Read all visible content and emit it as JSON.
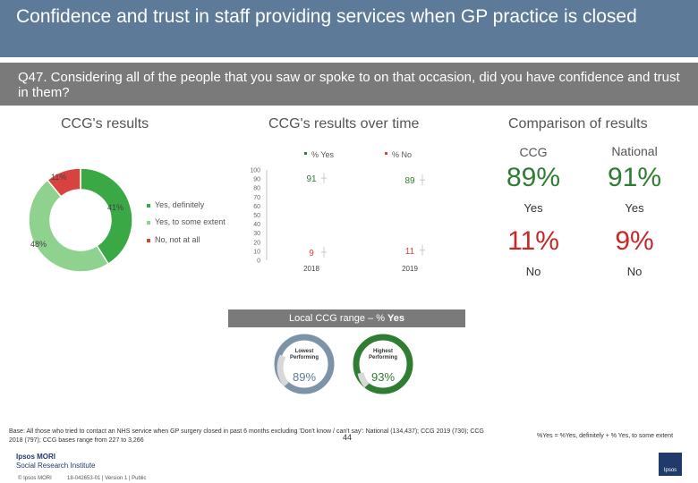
{
  "header": {
    "title": "Confidence and trust in staff providing services when GP practice is closed",
    "question": "Q47. Considering all of the people that you saw or spoke to on that occasion, did you have confidence and trust in them?"
  },
  "sections": {
    "ccg_results": "CCG's results",
    "over_time": "CCG's results over time",
    "comparison": "Comparison of results"
  },
  "donut": {
    "labels": [
      "41%",
      "48%",
      "11%"
    ],
    "legend": [
      "Yes, definitely",
      "Yes, to some extent",
      "No, not at all"
    ],
    "colors": [
      "#3aa845",
      "#8fd18f",
      "#d9433f"
    ]
  },
  "chart_data": {
    "type": "line",
    "categories": [
      "2018",
      "2019"
    ],
    "series": [
      {
        "name": "% Yes",
        "values": [
          91,
          89
        ],
        "color": "#2e7d32"
      },
      {
        "name": "% No",
        "values": [
          9,
          11
        ],
        "color": "#d9433f"
      }
    ],
    "yticks": [
      "0",
      "10",
      "20",
      "30",
      "40",
      "50",
      "60",
      "70",
      "80",
      "90",
      "100"
    ],
    "ylim": [
      0,
      100
    ],
    "legend": [
      "% Yes",
      "% No"
    ]
  },
  "comparison": {
    "ccg_label": "CCG",
    "national_label": "National",
    "ccg_yes": "89%",
    "national_yes": "91%",
    "yes_label": "Yes",
    "ccg_no": "11%",
    "national_no": "9%",
    "no_label": "No"
  },
  "range": {
    "title_prefix": "Local CCG range – % ",
    "title_bold": "Yes",
    "lowest_caption": "Lowest Performing",
    "lowest_value": "89%",
    "highest_caption": "Highest Performing",
    "highest_value": "93%",
    "lowest_color": "#7c93a8",
    "highest_color": "#2e7d32"
  },
  "footer": {
    "base": "Base: All those who tried to contact an NHS service when GP surgery closed in past 6 months excluding 'Don't know / can't say': National (134,437); CCG 2019 (730); CCG 2018 (797); CCG bases range from 227 to 3,266",
    "definition": "%Yes = %Yes, definitely + % Yes, to some extent",
    "page_number": "44",
    "logo_line1": "Ipsos MORI",
    "logo_line2": "Social Research Institute",
    "copyright": "© Ipsos MORI",
    "version": "18-042653-01 | Version 1 | Public",
    "badge": "Ipsos"
  }
}
